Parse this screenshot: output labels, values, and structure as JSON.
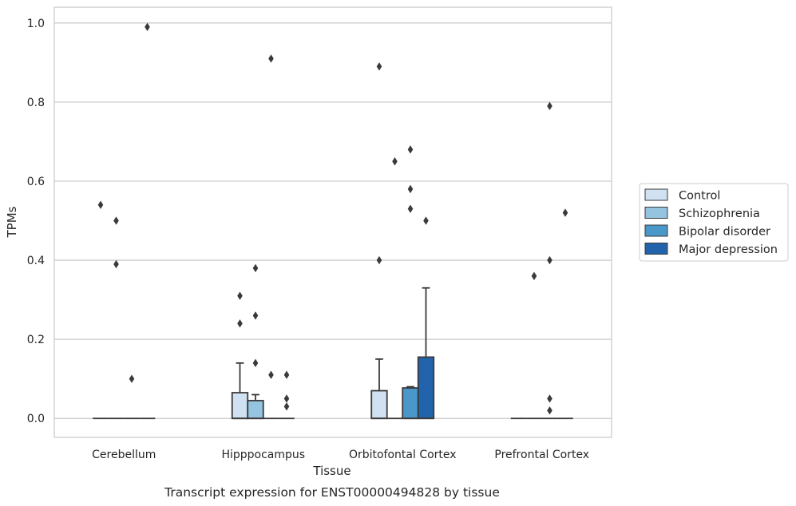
{
  "chart_data": {
    "type": "box",
    "title": "",
    "caption": "Transcript expression for ENST00000494828 by tissue",
    "xlabel": "Tissue",
    "ylabel": "TPMs",
    "ylim": [
      -0.048,
      1.04
    ],
    "yticks": [
      0.0,
      0.2,
      0.4,
      0.6,
      0.8,
      1.0
    ],
    "ytick_labels": [
      "0.0",
      "0.2",
      "0.4",
      "0.6",
      "0.8",
      "1.0"
    ],
    "grid": true,
    "legend_position": "right",
    "categories": [
      "Cerebellum",
      "Hipppocampus",
      "Orbitofontal Cortex",
      "Prefrontal Cortex"
    ],
    "series": [
      {
        "name": "Control",
        "color": "#d0e1f2",
        "boxes": [
          {
            "q1": 0,
            "median": 0,
            "q3": 0,
            "whislo": 0,
            "whishi": 0,
            "fliers": [
              0.54
            ]
          },
          {
            "q1": 0,
            "median": 0,
            "q3": 0.065,
            "whislo": 0,
            "whishi": 0.14,
            "fliers": [
              0.24,
              0.31
            ]
          },
          {
            "q1": 0,
            "median": 0,
            "q3": 0.07,
            "whislo": 0,
            "whishi": 0.15,
            "fliers": [
              0.4,
              0.89
            ]
          },
          {
            "q1": 0,
            "median": 0,
            "q3": 0,
            "whislo": 0,
            "whishi": 0,
            "fliers": []
          }
        ]
      },
      {
        "name": "Schizophrenia",
        "color": "#94c4df",
        "boxes": [
          {
            "q1": 0,
            "median": 0,
            "q3": 0,
            "whislo": 0,
            "whishi": 0,
            "fliers": [
              0.39,
              0.5
            ]
          },
          {
            "q1": 0,
            "median": 0,
            "q3": 0.045,
            "whislo": 0,
            "whishi": 0.06,
            "fliers": [
              0.14,
              0.26,
              0.38
            ]
          },
          {
            "q1": 0,
            "median": 0,
            "q3": 0,
            "whislo": 0,
            "whishi": 0,
            "fliers": [
              0.65
            ]
          },
          {
            "q1": 0,
            "median": 0,
            "q3": 0,
            "whislo": 0,
            "whishi": 0,
            "fliers": [
              0.36
            ]
          }
        ]
      },
      {
        "name": "Bipolar disorder",
        "color": "#4a98c9",
        "boxes": [
          {
            "q1": 0,
            "median": 0,
            "q3": 0,
            "whislo": 0,
            "whishi": 0,
            "fliers": [
              0.1
            ]
          },
          {
            "q1": 0,
            "median": 0,
            "q3": 0,
            "whislo": 0,
            "whishi": 0,
            "fliers": [
              0.11,
              0.91
            ]
          },
          {
            "q1": 0,
            "median": 0,
            "q3": 0.077,
            "whislo": 0,
            "whishi": 0.08,
            "fliers": [
              0.53,
              0.58,
              0.68
            ]
          },
          {
            "q1": 0,
            "median": 0,
            "q3": 0,
            "whislo": 0,
            "whishi": 0,
            "fliers": [
              0.02,
              0.05,
              0.4,
              0.79
            ]
          }
        ]
      },
      {
        "name": "Major depression",
        "color": "#2164ab",
        "boxes": [
          {
            "q1": 0,
            "median": 0,
            "q3": 0,
            "whislo": 0,
            "whishi": 0,
            "fliers": [
              0.99
            ]
          },
          {
            "q1": 0,
            "median": 0,
            "q3": 0,
            "whislo": 0,
            "whishi": 0,
            "fliers": [
              0.03,
              0.05,
              0.11
            ]
          },
          {
            "q1": 0,
            "median": 0,
            "q3": 0.155,
            "whislo": 0,
            "whishi": 0.33,
            "fliers": [
              0.5
            ]
          },
          {
            "q1": 0,
            "median": 0,
            "q3": 0,
            "whislo": 0,
            "whishi": 0,
            "fliers": [
              0.52
            ]
          }
        ]
      }
    ]
  }
}
